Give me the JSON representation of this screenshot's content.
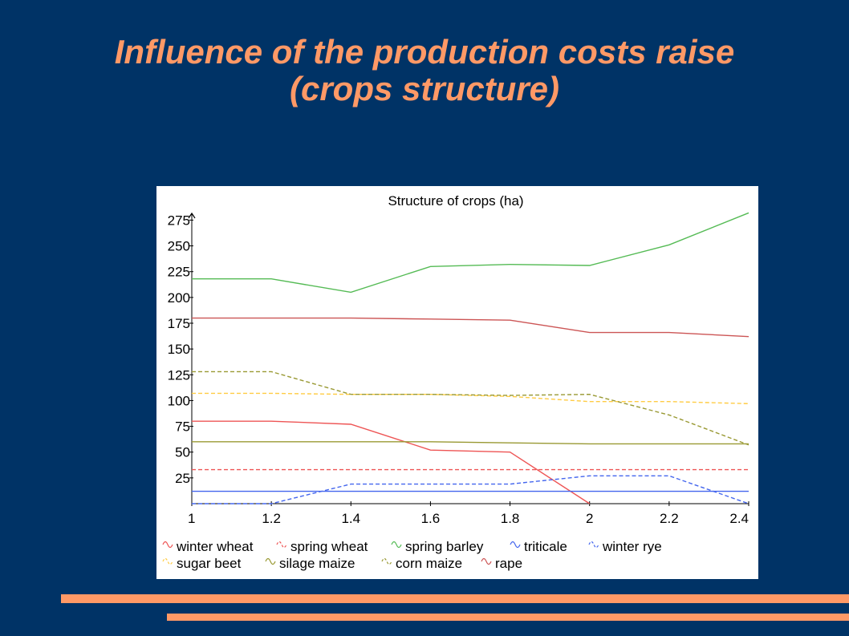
{
  "slide": {
    "title_line1": "Influence of the production costs raise",
    "title_line2": "(crops structure)",
    "accent_color": "#ff9966",
    "background_color": "#003366"
  },
  "chart_data": {
    "type": "line",
    "title": "Structure of crops (ha)",
    "xlabel": "",
    "ylabel": "",
    "x": [
      1,
      1.2,
      1.4,
      1.6,
      1.8,
      2,
      2.2,
      2.4
    ],
    "x_tick_labels": [
      "1",
      "1.2",
      "1.4",
      "1.6",
      "1.8",
      "2",
      "2.2",
      "2.4"
    ],
    "y_ticks": [
      25,
      50,
      75,
      100,
      125,
      150,
      175,
      200,
      225,
      250,
      275
    ],
    "xlim": [
      1,
      2.4
    ],
    "ylim": [
      0,
      280
    ],
    "grid": false,
    "legend_position": "bottom",
    "series": [
      {
        "name": "winter wheat",
        "color": "#ee5555",
        "dash": "solid",
        "values": [
          80,
          80,
          77,
          52,
          50,
          0,
          null,
          null
        ]
      },
      {
        "name": "spring wheat",
        "color": "#ee5555",
        "dash": "dashed",
        "values": [
          33,
          33,
          33,
          33,
          33,
          33,
          33,
          33
        ]
      },
      {
        "name": "spring barley",
        "color": "#55bb55",
        "dash": "solid",
        "values": [
          218,
          218,
          205,
          230,
          232,
          231,
          251,
          282
        ]
      },
      {
        "name": "triticale",
        "color": "#4466ee",
        "dash": "solid",
        "values": [
          12,
          12,
          12,
          12,
          12,
          12,
          12,
          12
        ]
      },
      {
        "name": "winter rye",
        "color": "#4466ee",
        "dash": "dashed",
        "values": [
          0,
          0,
          19,
          19,
          19,
          27,
          27,
          0
        ]
      },
      {
        "name": "sugar beet",
        "color": "#ffcc44",
        "dash": "dashed",
        "values": [
          107,
          107,
          106,
          106,
          104,
          99,
          99,
          97
        ]
      },
      {
        "name": "silage maize",
        "color": "#999933",
        "dash": "solid",
        "values": [
          60,
          60,
          60,
          60,
          59,
          58,
          58,
          58
        ]
      },
      {
        "name": "corn maize",
        "color": "#999933",
        "dash": "dashed",
        "values": [
          128,
          128,
          106,
          106,
          105,
          106,
          86,
          57
        ]
      },
      {
        "name": "rape",
        "color": "#cc5555",
        "dash": "solid",
        "values": [
          180,
          180,
          180,
          179,
          178,
          166,
          166,
          162
        ]
      }
    ]
  }
}
